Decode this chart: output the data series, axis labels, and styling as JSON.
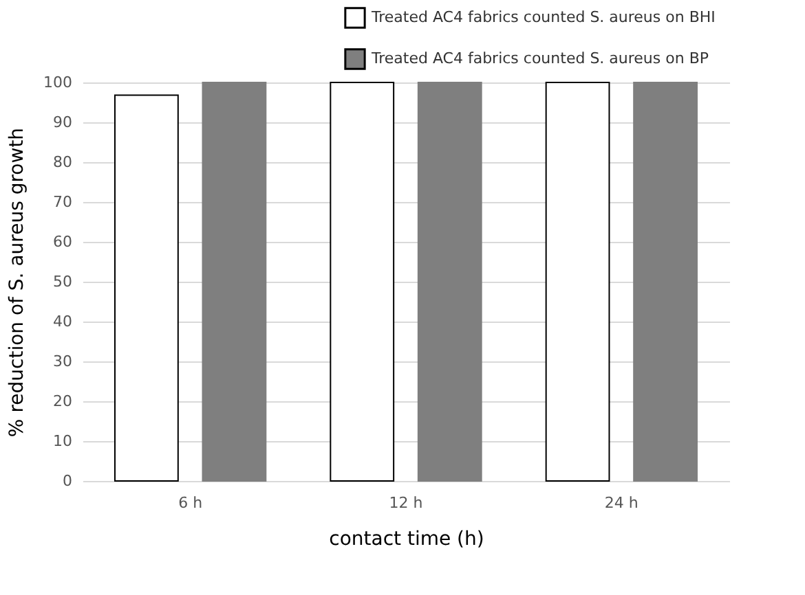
{
  "chart_data": {
    "type": "bar",
    "xlabel": "contact time (h)",
    "ylabel": "% reduction of S. aureus growth",
    "categories": [
      "6 h",
      "12 h",
      "24 h"
    ],
    "series": [
      {
        "name": "Treated AC4 fabrics counted S. aureus  on BHI",
        "color": "#ffffff",
        "values": [
          96.8,
          100,
          100
        ]
      },
      {
        "name": "Treated AC4 fabrics counted S. aureus on BP",
        "color": "#7f7f7f",
        "values": [
          100,
          100,
          100
        ]
      }
    ],
    "ylim": [
      0,
      100
    ],
    "yticks": [
      0,
      10,
      20,
      30,
      40,
      50,
      60,
      70,
      80,
      90,
      100
    ],
    "grid": "y",
    "legend": "top right"
  }
}
